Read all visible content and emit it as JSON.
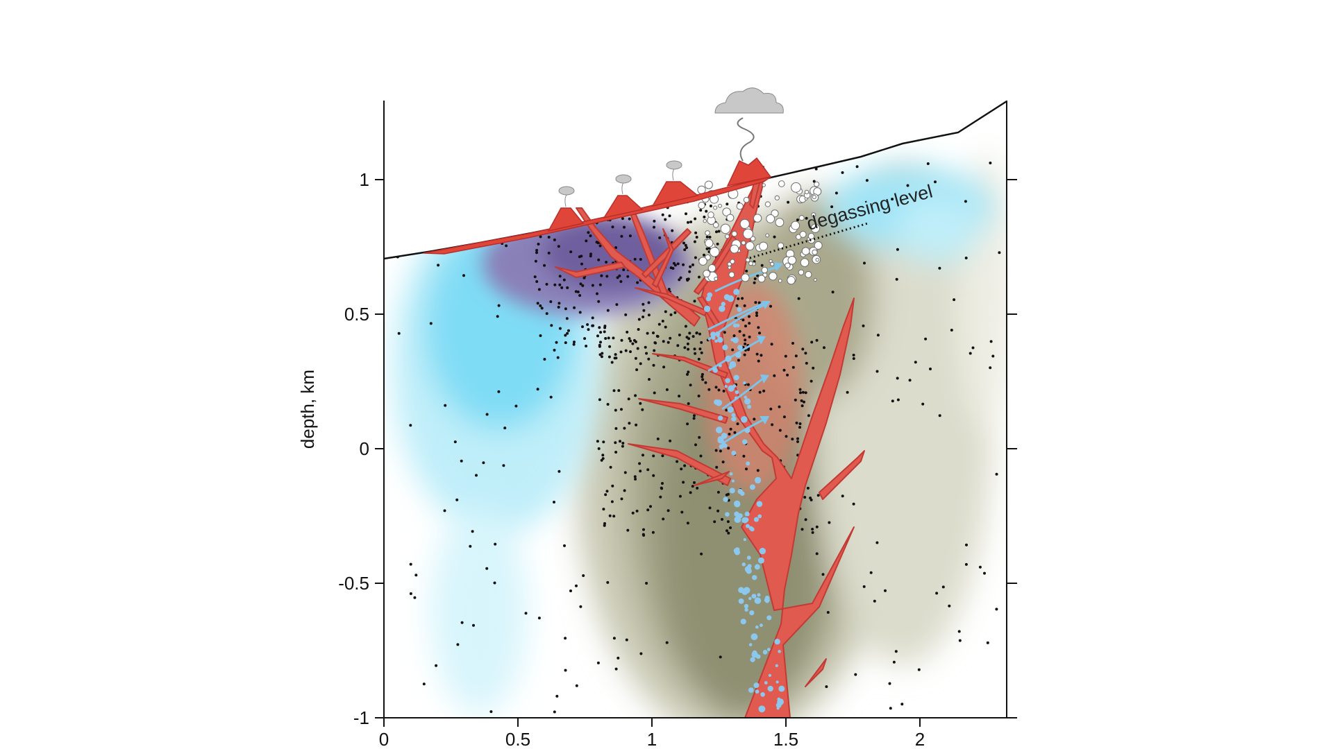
{
  "figure": {
    "y_axis_title": "depth, km",
    "annotation": "degassing level"
  },
  "chart_data": {
    "type": "cross-section",
    "xlabel": "",
    "ylabel": "depth, km",
    "xlim": [
      0,
      2.32
    ],
    "ylim": [
      -1,
      1.3
    ],
    "x_ticks": [
      {
        "value": 0,
        "label": "0"
      },
      {
        "value": 0.5,
        "label": "0.5"
      },
      {
        "value": 1,
        "label": "1"
      },
      {
        "value": 1.5,
        "label": "1.5"
      },
      {
        "value": 2,
        "label": "2"
      }
    ],
    "y_ticks": [
      {
        "value": 1,
        "label": "1"
      },
      {
        "value": 0.5,
        "label": "0.5"
      },
      {
        "value": 0,
        "label": "0"
      },
      {
        "value": -0.5,
        "label": "-0.5"
      },
      {
        "value": -1,
        "label": "-1"
      }
    ],
    "surface_profile": [
      [
        0,
        0.71
      ],
      [
        0.5,
        0.82
      ],
      [
        1.0,
        0.96
      ],
      [
        1.5,
        1.1
      ],
      [
        2.0,
        1.22
      ],
      [
        2.32,
        1.3
      ]
    ],
    "degassing_level": [
      [
        1.4,
        0.72
      ],
      [
        1.8,
        0.83
      ]
    ],
    "vents": [
      {
        "x": 0.68,
        "y": 0.86
      },
      {
        "x": 0.9,
        "y": 0.92
      },
      {
        "x": 1.08,
        "y": 0.97
      },
      {
        "x": 1.38,
        "y": 1.06
      }
    ],
    "colors": {
      "magma": "#e05a50",
      "magma_edge": "#c23a34",
      "conductive_blue": "#57d0f2",
      "purple": "#6f5f9e",
      "resistive_gray": "#8a8a6e",
      "bubbles": "#8cc8ee"
    }
  }
}
